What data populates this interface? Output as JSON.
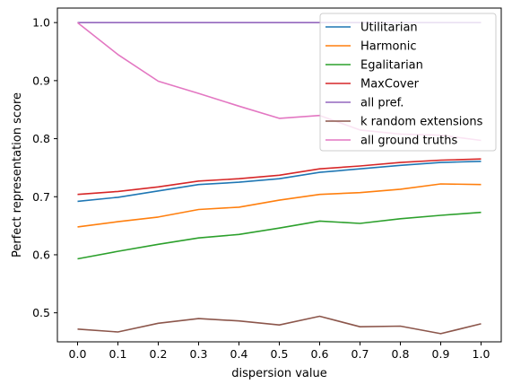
{
  "chart_data": {
    "type": "line",
    "xlabel": "dispersion value",
    "ylabel": "Perfect representation score",
    "xlim": [
      -0.05,
      1.05
    ],
    "ylim": [
      0.45,
      1.025
    ],
    "x_ticks": [
      0.0,
      0.1,
      0.2,
      0.3,
      0.4,
      0.5,
      0.6,
      0.7,
      0.8,
      0.9,
      1.0
    ],
    "y_ticks": [
      0.5,
      0.6,
      0.7,
      0.8,
      0.9,
      1.0
    ],
    "x_tick_labels": [
      "0.0",
      "0.1",
      "0.2",
      "0.3",
      "0.4",
      "0.5",
      "0.6",
      "0.7",
      "0.8",
      "0.9",
      "1.0"
    ],
    "y_tick_labels": [
      "0.5",
      "0.6",
      "0.7",
      "0.8",
      "0.9",
      "1.0"
    ],
    "x": [
      0.0,
      0.1,
      0.2,
      0.3,
      0.4,
      0.5,
      0.6,
      0.7,
      0.8,
      0.9,
      1.0
    ],
    "grid": false,
    "legend_position": "top-right",
    "series": [
      {
        "name": "Utilitarian",
        "color": "#1f77b4",
        "values": [
          0.692,
          0.699,
          0.71,
          0.721,
          0.725,
          0.731,
          0.742,
          0.748,
          0.754,
          0.759,
          0.761
        ]
      },
      {
        "name": "Harmonic",
        "color": "#ff7f0e",
        "values": [
          0.648,
          0.657,
          0.665,
          0.678,
          0.682,
          0.694,
          0.704,
          0.707,
          0.713,
          0.722,
          0.721
        ]
      },
      {
        "name": "Egalitarian",
        "color": "#2ca02c",
        "values": [
          0.593,
          0.606,
          0.618,
          0.629,
          0.635,
          0.646,
          0.658,
          0.654,
          0.662,
          0.668,
          0.673
        ]
      },
      {
        "name": "MaxCover",
        "color": "#d62728",
        "values": [
          0.704,
          0.709,
          0.717,
          0.727,
          0.731,
          0.737,
          0.748,
          0.753,
          0.759,
          0.763,
          0.765
        ]
      },
      {
        "name": "all pref.",
        "color": "#9467bd",
        "values": [
          1.0,
          1.0,
          1.0,
          1.0,
          1.0,
          1.0,
          1.0,
          1.0,
          1.0,
          1.0,
          1.0
        ]
      },
      {
        "name": "k random extensions",
        "color": "#8c564b",
        "values": [
          0.472,
          0.467,
          0.482,
          0.49,
          0.486,
          0.479,
          0.494,
          0.476,
          0.477,
          0.464,
          0.481
        ]
      },
      {
        "name": "all ground truths",
        "color": "#e377c2",
        "values": [
          1.0,
          0.945,
          0.899,
          0.878,
          0.856,
          0.835,
          0.84,
          0.815,
          0.808,
          0.806,
          0.797
        ]
      }
    ]
  }
}
